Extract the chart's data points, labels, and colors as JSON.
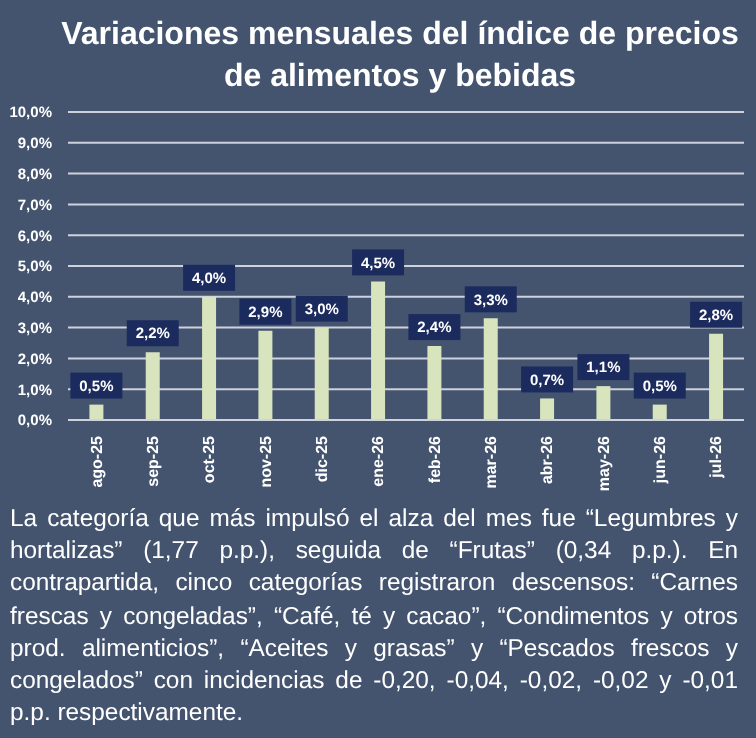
{
  "chart_data": {
    "type": "bar",
    "title": "Variaciones mensuales del índice de precios de alimentos y bebidas",
    "categories": [
      "ago-25",
      "sep-25",
      "oct-25",
      "nov-25",
      "dic-25",
      "ene-26",
      "feb-26",
      "mar-26",
      "abr-26",
      "may-26",
      "jun-26",
      "jul-26"
    ],
    "values": [
      0.5,
      2.2,
      4.0,
      2.9,
      3.0,
      4.5,
      2.4,
      3.3,
      0.7,
      1.1,
      0.5,
      2.8
    ],
    "value_labels": [
      "0,5%",
      "2,2%",
      "4,0%",
      "2,9%",
      "3,0%",
      "4,5%",
      "2,4%",
      "3,3%",
      "0,7%",
      "1,1%",
      "0,5%",
      "2,8%"
    ],
    "color": "#d7e4bd",
    "ylim": [
      0,
      10
    ],
    "yticks": [
      {
        "value": 0,
        "label": "0,0%"
      },
      {
        "value": 1,
        "label": "1,0%"
      },
      {
        "value": 2,
        "label": "2,0%"
      },
      {
        "value": 3,
        "label": "3,0%"
      },
      {
        "value": 4,
        "label": "4,0%"
      },
      {
        "value": 5,
        "label": "5,0%"
      },
      {
        "value": 6,
        "label": "6,0%"
      },
      {
        "value": 7,
        "label": "7,0%"
      },
      {
        "value": 8,
        "label": "8,0%"
      },
      {
        "value": 9,
        "label": "9,0%"
      },
      {
        "value": 10,
        "label": "10,0%"
      }
    ],
    "grid": "y",
    "annotations": [
      "La categoría que más impulsó el alza del mes fue “Legumbres y hortalizas” (1,77 p.p.), seguida de “Frutas” (0,34 p.p.). En contrapartida, cinco categorías registraron descensos: “Carnes frescas y congeladas”, “Café, té y cacao”, “Condimentos y otros prod. alimenticios”, “Aceites y grasas” y “Pescados frescos y congelados” con incidencias de -0,20, -0,04, -0,02, -0,02 y -0,01 p.p. respectivamente."
    ]
  }
}
